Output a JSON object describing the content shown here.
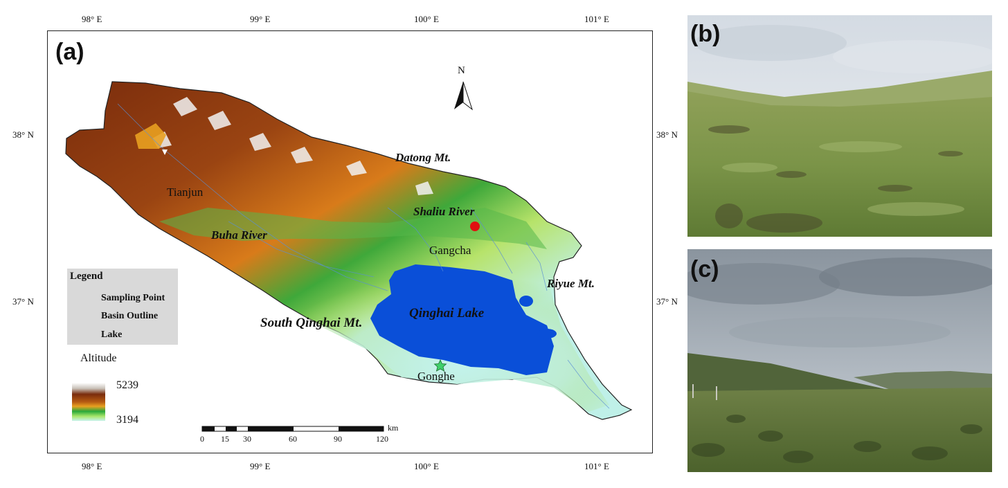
{
  "panel_a": {
    "label": "(a)",
    "lon_ticks": [
      "98° E",
      "99° E",
      "100° E",
      "101° E"
    ],
    "lat_ticks": [
      "38° N",
      "37° N"
    ],
    "north_arrow": "N",
    "places": {
      "datong": "Datong Mt.",
      "shaliu": "Shaliu River",
      "buha": "Buha River",
      "riyue": "Riyue Mt.",
      "south_qinghai": "South Qinghai Mt.",
      "qinghai_lake": "Qinghai Lake",
      "tianjun": "Tianjun",
      "gangcha": "Gangcha",
      "gonghe": "Gonghe"
    },
    "legend": {
      "title": "Legend",
      "sampling_point": "Sampling Point",
      "basin_outline": "Basin Outline",
      "lake": "Lake"
    },
    "altitude": {
      "title": "Altitude",
      "max": "5239",
      "min": "3194"
    },
    "scale_bar": {
      "unit": "km",
      "labels": [
        "0",
        "15",
        "30",
        "60",
        "90",
        "120"
      ]
    },
    "colors": {
      "lake": "#0a4fd8",
      "sampling_point": "#e01010",
      "elev_high": "#7a2c0c",
      "elev_mid": "#d87b1a",
      "elev_low": "#8fd25e",
      "elev_lowest": "#bff0e8"
    }
  },
  "panel_b": {
    "label": "(b)"
  },
  "panel_c": {
    "label": "(c)"
  }
}
